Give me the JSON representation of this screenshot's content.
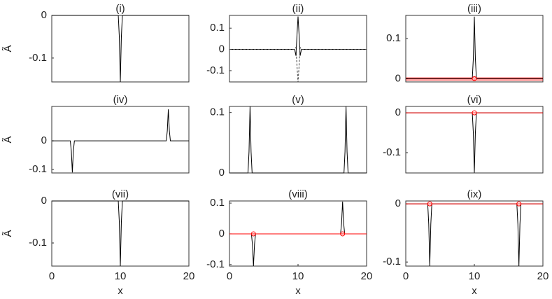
{
  "chart_data": [
    {
      "type": "line",
      "title": "(i)",
      "ylabel": "Ã",
      "xlim": [
        0,
        20
      ],
      "ylim": [
        -0.156,
        0
      ],
      "yticks": [
        -0.1,
        0
      ],
      "series": [
        {
          "color": "#000000",
          "x": [
            0,
            9.7,
            9.85,
            10,
            10.15,
            10.3,
            20
          ],
          "values": [
            0,
            0,
            -0.05,
            -0.156,
            -0.05,
            0,
            0
          ]
        }
      ]
    },
    {
      "type": "line",
      "title": "(ii)",
      "xlim": [
        0,
        20
      ],
      "ylim": [
        -0.153,
        0.16
      ],
      "yticks": [
        -0.1,
        0,
        0.1
      ],
      "series": [
        {
          "color": "#000000",
          "x": [
            0,
            9.5,
            9.7,
            9.85,
            10,
            10.15,
            10.3,
            10.5,
            20
          ],
          "values": [
            0,
            0,
            -0.03,
            0.07,
            0.155,
            0.07,
            -0.03,
            0,
            0
          ]
        },
        {
          "color": "#444444",
          "dashed": true,
          "x": [
            0,
            9.5,
            9.7,
            9.85,
            10,
            10.15,
            10.3,
            10.5,
            20
          ],
          "values": [
            0,
            0,
            0.01,
            -0.08,
            -0.153,
            -0.08,
            0.01,
            0,
            0
          ]
        }
      ]
    },
    {
      "type": "line",
      "title": "(iii)",
      "xlim": [
        0,
        20
      ],
      "ylim": [
        -0.008,
        0.158
      ],
      "yticks": [
        0,
        0.1
      ],
      "series": [
        {
          "color": "#000000",
          "x": [
            0,
            9.7,
            9.85,
            10,
            10.15,
            10.3,
            20
          ],
          "values": [
            0,
            0,
            0.05,
            0.155,
            0.05,
            0,
            0
          ]
        },
        {
          "color": "#ff0000",
          "x": [
            0,
            20
          ],
          "values": [
            0.002,
            0.002
          ]
        },
        {
          "color": "#ff0000",
          "x": [
            0,
            20
          ],
          "values": [
            -0.003,
            -0.003
          ]
        },
        {
          "color": "#ff0000",
          "marker": "o",
          "x": [
            10
          ],
          "values": [
            0
          ]
        }
      ]
    },
    {
      "type": "line",
      "title": "(iv)",
      "ylabel": "Ã",
      "xlim": [
        0,
        20
      ],
      "ylim": [
        -0.112,
        0.12
      ],
      "yticks": [
        -0.1,
        0
      ],
      "series": [
        {
          "color": "#000000",
          "x": [
            0,
            2.7,
            2.85,
            3,
            3.15,
            3.3,
            16.7,
            16.85,
            17,
            17.15,
            17.3,
            20
          ],
          "values": [
            0,
            0,
            -0.035,
            -0.11,
            -0.035,
            0,
            0,
            0.035,
            0.11,
            0.035,
            0,
            0
          ]
        }
      ]
    },
    {
      "type": "line",
      "title": "(v)",
      "xlim": [
        0,
        20
      ],
      "ylim": [
        0,
        0.11
      ],
      "yticks": [
        0,
        0.1
      ],
      "series": [
        {
          "color": "#000000",
          "x": [
            0,
            2.7,
            2.85,
            3,
            3.15,
            3.3,
            16.7,
            16.85,
            17,
            17.15,
            17.3,
            20
          ],
          "values": [
            0,
            0,
            0.035,
            0.11,
            0.035,
            0,
            0,
            0.035,
            0.11,
            0.035,
            0,
            0
          ]
        }
      ]
    },
    {
      "type": "line",
      "title": "(vi)",
      "xlim": [
        0,
        20
      ],
      "ylim": [
        -0.151,
        0.016
      ],
      "yticks": [
        -0.1,
        0
      ],
      "series": [
        {
          "color": "#000000",
          "x": [
            0,
            9.7,
            9.85,
            10,
            10.15,
            10.3,
            20
          ],
          "values": [
            0,
            0,
            -0.05,
            -0.15,
            -0.05,
            0,
            0
          ]
        },
        {
          "color": "#ff0000",
          "x": [
            0,
            20
          ],
          "values": [
            0,
            0
          ]
        },
        {
          "color": "#ff0000",
          "marker": "o",
          "x": [
            10
          ],
          "values": [
            0
          ]
        }
      ]
    },
    {
      "type": "line",
      "title": "(vii)",
      "ylabel": "Ã",
      "xlabel": "x",
      "xlim": [
        0,
        20
      ],
      "xticks": [
        0,
        10,
        20
      ],
      "ylim": [
        -0.155,
        0
      ],
      "yticks": [
        -0.1,
        0
      ],
      "series": [
        {
          "color": "#000000",
          "x": [
            0,
            9.7,
            9.85,
            10,
            10.15,
            10.3,
            20
          ],
          "values": [
            0,
            0,
            -0.05,
            -0.155,
            -0.05,
            0,
            0
          ]
        }
      ]
    },
    {
      "type": "line",
      "title": "(viii)",
      "xlabel": "x",
      "xlim": [
        0,
        20
      ],
      "xticks": [
        0,
        10,
        20
      ],
      "ylim": [
        -0.105,
        0.107
      ],
      "yticks": [
        -0.1,
        0,
        0.1
      ],
      "series": [
        {
          "color": "#000000",
          "x": [
            0,
            3.2,
            3.35,
            3.5,
            3.65,
            3.8,
            16.2,
            16.35,
            16.5,
            16.65,
            16.8,
            20
          ],
          "values": [
            0,
            0,
            -0.035,
            -0.105,
            -0.035,
            0,
            0,
            0.035,
            0.105,
            0.035,
            0,
            0
          ]
        },
        {
          "color": "#ff0000",
          "x": [
            0,
            20
          ],
          "values": [
            0,
            0
          ]
        },
        {
          "color": "#ff0000",
          "marker": "o",
          "x": [
            3.5,
            16.5
          ],
          "values": [
            0,
            0
          ]
        }
      ]
    },
    {
      "type": "line",
      "title": "(ix)",
      "xlabel": "x",
      "xlim": [
        0,
        20
      ],
      "xticks": [
        0,
        10,
        20
      ],
      "ylim": [
        -0.107,
        0.005
      ],
      "yticks": [
        -0.1,
        0
      ],
      "series": [
        {
          "color": "#000000",
          "x": [
            0,
            3.2,
            3.35,
            3.5,
            3.65,
            3.8,
            16.2,
            16.35,
            16.5,
            16.65,
            16.8,
            20
          ],
          "values": [
            0,
            0,
            -0.035,
            -0.107,
            -0.035,
            0,
            0,
            -0.035,
            -0.107,
            -0.035,
            0,
            0
          ]
        },
        {
          "color": "#ff0000",
          "x": [
            0,
            20
          ],
          "values": [
            0,
            0
          ]
        },
        {
          "color": "#ff0000",
          "marker": "o",
          "x": [
            3.5,
            16.5
          ],
          "values": [
            0,
            0
          ]
        }
      ]
    }
  ]
}
